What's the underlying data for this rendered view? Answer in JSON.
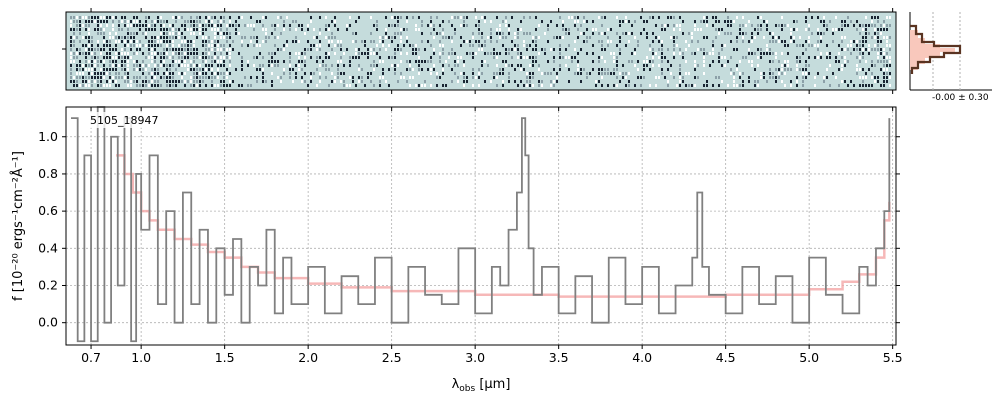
{
  "chart_data": {
    "type": "line",
    "object_label": "5105_18947",
    "side_panel_label": "-0.00 ± 0.30",
    "xlabel_main": "λ",
    "xlabel_sub": "obs",
    "xlabel_unit": " [μm]",
    "ylabel": "f  [10⁻²⁰ ergs⁻¹cm⁻²Å⁻¹]",
    "xlim": [
      0.55,
      5.52
    ],
    "ylim": [
      -0.12,
      1.16
    ],
    "grid": true,
    "x_ticks": [
      0.7,
      1.0,
      1.5,
      2.0,
      2.5,
      3.0,
      3.5,
      4.0,
      4.5,
      5.0,
      5.5
    ],
    "x_tick_labels": [
      "0.7",
      "1.0",
      "1.5",
      "2.0",
      "2.5",
      "3.0",
      "3.5",
      "4.0",
      "4.5",
      "5.0",
      "5.5"
    ],
    "y_ticks": [
      0.0,
      0.2,
      0.4,
      0.6,
      0.8,
      1.0
    ],
    "y_tick_labels": [
      "0.0",
      "0.2",
      "0.4",
      "0.6",
      "0.8",
      "1.0"
    ],
    "colors": {
      "spectrum": "#808080",
      "error": "#f4a6a6",
      "image_bg": "#c5dcdc",
      "profile_line": "#5a3422",
      "profile_fill": "#f9c8bc"
    },
    "series": [
      {
        "role": "flux",
        "x": [
          0.58,
          0.62,
          0.66,
          0.7,
          0.74,
          0.78,
          0.82,
          0.86,
          0.9,
          0.94,
          0.97,
          1.0,
          1.05,
          1.1,
          1.15,
          1.2,
          1.25,
          1.3,
          1.35,
          1.4,
          1.45,
          1.5,
          1.55,
          1.6,
          1.65,
          1.7,
          1.75,
          1.8,
          1.85,
          1.9,
          2.0,
          2.1,
          2.2,
          2.3,
          2.4,
          2.5,
          2.6,
          2.7,
          2.8,
          2.9,
          3.0,
          3.1,
          3.15,
          3.2,
          3.25,
          3.28,
          3.3,
          3.32,
          3.35,
          3.4,
          3.5,
          3.6,
          3.7,
          3.8,
          3.9,
          4.0,
          4.1,
          4.2,
          4.3,
          4.33,
          4.36,
          4.4,
          4.5,
          4.6,
          4.7,
          4.8,
          4.9,
          5.0,
          5.1,
          5.2,
          5.3,
          5.35,
          5.4,
          5.45,
          5.48
        ],
        "y": [
          1.1,
          -0.1,
          0.9,
          -0.1,
          1.2,
          0.0,
          1.0,
          0.2,
          1.1,
          -0.1,
          0.8,
          0.5,
          0.9,
          0.1,
          0.6,
          0.0,
          0.7,
          0.1,
          0.5,
          0.0,
          0.4,
          0.15,
          0.45,
          0.0,
          0.3,
          0.2,
          0.5,
          0.05,
          0.35,
          0.1,
          0.3,
          0.05,
          0.25,
          0.1,
          0.35,
          0.0,
          0.3,
          0.15,
          0.1,
          0.4,
          0.05,
          0.3,
          0.2,
          0.5,
          0.7,
          1.1,
          0.9,
          0.4,
          0.15,
          0.3,
          0.05,
          0.25,
          0.0,
          0.35,
          0.1,
          0.3,
          0.05,
          0.2,
          0.35,
          0.7,
          0.3,
          0.15,
          0.05,
          0.3,
          0.1,
          0.25,
          0.0,
          0.35,
          0.15,
          0.05,
          0.3,
          0.2,
          0.4,
          0.6,
          1.1
        ]
      },
      {
        "role": "error",
        "x": [
          0.85,
          0.9,
          0.95,
          1.0,
          1.05,
          1.1,
          1.2,
          1.3,
          1.4,
          1.5,
          1.6,
          1.7,
          1.8,
          2.0,
          2.2,
          2.5,
          3.0,
          3.5,
          4.0,
          4.5,
          5.0,
          5.2,
          5.3,
          5.4,
          5.45,
          5.48
        ],
        "y": [
          0.9,
          0.8,
          0.7,
          0.6,
          0.55,
          0.5,
          0.45,
          0.42,
          0.38,
          0.35,
          0.3,
          0.27,
          0.24,
          0.21,
          0.19,
          0.17,
          0.15,
          0.14,
          0.14,
          0.15,
          0.18,
          0.22,
          0.26,
          0.35,
          0.55,
          0.65
        ]
      }
    ]
  }
}
